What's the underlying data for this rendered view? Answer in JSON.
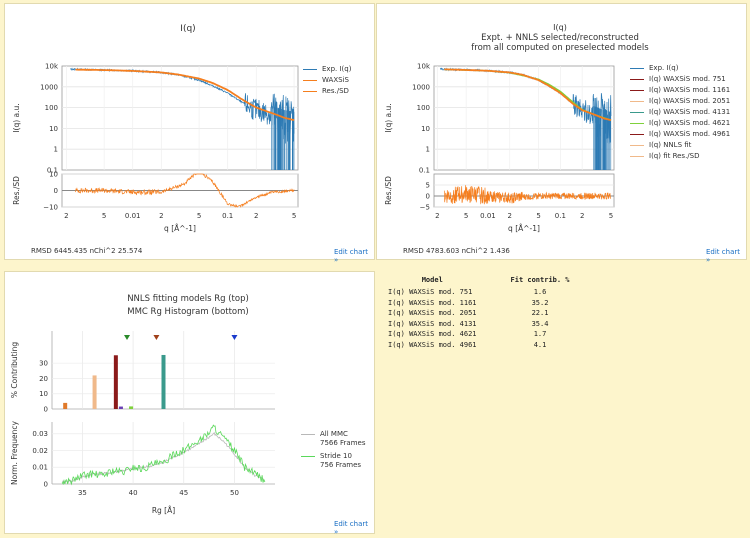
{
  "panels": {
    "p1": {
      "title": "I(q)",
      "rmsd_label": "RMSD 6445.435   nChi^2 25.574",
      "edit": "Edit chart »"
    },
    "p2": {
      "title_lines": [
        "I(q)",
        "Expt. + NNLS selected/reconstructed",
        "from all computed on preselected models"
      ],
      "rmsd_label": "RMSD 4783.603   nChi^2 1.436",
      "edit": "Edit chart »"
    },
    "p3": {
      "title_lines": [
        "NNLS fitting models Rg (top)",
        "MMC Rg Histogram (bottom)"
      ],
      "edit": "Edit chart »"
    }
  },
  "fit_table": {
    "headers": [
      "Model",
      "Fit contrib. %"
    ],
    "rows": [
      [
        "I(q) WAXSiS mod. 751",
        "1.6"
      ],
      [
        "I(q) WAXSiS mod. 1161",
        "35.2"
      ],
      [
        "I(q) WAXSiS mod. 2051",
        "22.1"
      ],
      [
        "I(q) WAXSiS mod. 4131",
        "35.4"
      ],
      [
        "I(q) WAXSiS mod. 4621",
        "1.7"
      ],
      [
        "I(q) WAXSiS mod. 4961",
        "4.1"
      ]
    ]
  },
  "colors": {
    "blue": "#2e7bb4",
    "orange": "#f57e1e",
    "green": "#7fd13b",
    "darkred": "#8b1a1a",
    "teal": "#3a9a8c",
    "peach": "#f0b98a",
    "background": "#fdf5cc"
  },
  "chart_data": [
    {
      "type": "line",
      "title": "I(q)",
      "xlabel": "q [Å^-1]",
      "ylabel": "I(q) a.u.",
      "xscale": "log",
      "yscale": "log",
      "xlim": [
        0.0018,
        0.55
      ],
      "ylim": [
        0.1,
        10000
      ],
      "x_ticks": [
        "2",
        "5",
        "0.01",
        "2",
        "5",
        "0.1",
        "2",
        "5"
      ],
      "y_ticks": [
        "10k",
        "1000",
        "100",
        "10",
        "1",
        "0.1"
      ],
      "residual_ylabel": "Res./SD",
      "residual_ylim": [
        -10,
        10
      ],
      "residual_ticks": [
        "10",
        "0",
        "−10"
      ],
      "legend": [
        "Exp. I(q)",
        "WAXSiS",
        "Res./SD"
      ],
      "series": [
        {
          "name": "Exp. I(q)",
          "color": "#2e7bb4",
          "x": [
            0.0025,
            0.004,
            0.006,
            0.01,
            0.02,
            0.03,
            0.05,
            0.07,
            0.1,
            0.15,
            0.2,
            0.3,
            0.4,
            0.5
          ],
          "y": [
            7000,
            6600,
            6300,
            5900,
            4900,
            3800,
            2100,
            1100,
            500,
            150,
            75,
            45,
            30,
            25
          ]
        },
        {
          "name": "WAXSiS",
          "color": "#f57e1e",
          "x": [
            0.0025,
            0.004,
            0.006,
            0.01,
            0.02,
            0.03,
            0.05,
            0.07,
            0.1,
            0.15,
            0.2,
            0.3,
            0.4,
            0.5
          ],
          "y": [
            6700,
            6500,
            6250,
            5800,
            4900,
            3900,
            2500,
            1500,
            700,
            210,
            100,
            52,
            32,
            25
          ]
        },
        {
          "name": "Res./SD",
          "color": "#f57e1e",
          "x": [
            0.0025,
            0.005,
            0.01,
            0.02,
            0.035,
            0.05,
            0.07,
            0.1,
            0.13,
            0.2,
            0.3,
            0.5
          ],
          "y": [
            0,
            0,
            -1,
            -1,
            4,
            12,
            5,
            -8,
            -10,
            -4,
            -1,
            0
          ]
        }
      ]
    },
    {
      "type": "line",
      "title": "I(q) / Expt. + NNLS selected/reconstructed / from all computed on preselected models",
      "xlabel": "q [Å^-1]",
      "ylabel": "I(q) a.u.",
      "xscale": "log",
      "yscale": "log",
      "xlim": [
        0.0018,
        0.55
      ],
      "ylim": [
        0.1,
        10000
      ],
      "x_ticks": [
        "2",
        "5",
        "0.01",
        "2",
        "5",
        "0.1",
        "2",
        "5"
      ],
      "y_ticks": [
        "10k",
        "1000",
        "100",
        "10",
        "1",
        "0.1"
      ],
      "residual_ylabel": "Res./SD",
      "residual_ylim": [
        -5,
        10
      ],
      "residual_ticks": [
        "5",
        "0",
        "−5"
      ],
      "legend": [
        "Exp. I(q)",
        "I(q) WAXSiS mod. 751",
        "I(q) WAXSiS mod. 1161",
        "I(q) WAXSiS mod. 2051",
        "I(q) WAXSiS mod. 4131",
        "I(q) WAXSiS mod. 4621",
        "I(q) WAXSiS mod. 4961",
        "I(q) NNLS fit",
        "I(q) fit Res./SD"
      ],
      "legend_colors": [
        "#2e7bb4",
        "#8b1a1a",
        "#8b1a1a",
        "#f0b98a",
        "#3a9a8c",
        "#7fd13b",
        "#8b1a1a",
        "#f0b98a",
        "#f0b98a"
      ],
      "series": [
        {
          "name": "Exp. I(q)",
          "color": "#2e7bb4",
          "x": [
            0.0025,
            0.004,
            0.006,
            0.01,
            0.02,
            0.03,
            0.05,
            0.07,
            0.1,
            0.15,
            0.2,
            0.3,
            0.4,
            0.5
          ],
          "y": [
            7000,
            6600,
            6300,
            5900,
            4900,
            3800,
            2100,
            1100,
            500,
            150,
            75,
            45,
            30,
            25
          ]
        },
        {
          "name": "I(q) WAXSiS mod. 4621",
          "color": "#7fd13b",
          "x": [
            0.0025,
            0.01,
            0.02,
            0.03,
            0.05,
            0.07,
            0.1,
            0.15,
            0.2,
            0.3,
            0.5
          ],
          "y": [
            6900,
            5900,
            4700,
            3500,
            2300,
            1300,
            600,
            180,
            80,
            45,
            25
          ]
        },
        {
          "name": "I(q) NNLS fit",
          "color": "#f57e1e",
          "x": [
            0.0025,
            0.004,
            0.006,
            0.01,
            0.02,
            0.03,
            0.05,
            0.07,
            0.1,
            0.15,
            0.2,
            0.3,
            0.4,
            0.5
          ],
          "y": [
            6900,
            6600,
            6300,
            5900,
            4900,
            3800,
            2100,
            1100,
            500,
            150,
            75,
            45,
            30,
            25
          ]
        },
        {
          "name": "I(q) fit Res./SD",
          "color": "#f57e1e",
          "x": [
            0.0025,
            0.005,
            0.01,
            0.02,
            0.05,
            0.1,
            0.2,
            0.5
          ],
          "y": [
            0,
            1,
            0,
            -1,
            0,
            0,
            0,
            0
          ]
        }
      ]
    },
    {
      "type": "bar",
      "title": "NNLS fitting models Rg (top)",
      "ylabel": "% Contributing",
      "xlim": [
        32,
        54
      ],
      "ylim": [
        0,
        38
      ],
      "y_ticks": [
        0,
        10,
        20,
        30
      ],
      "bars": [
        {
          "x": 33.3,
          "value": 4,
          "color": "#e07a2a"
        },
        {
          "x": 36.2,
          "value": 22,
          "color": "#f0b98a"
        },
        {
          "x": 38.3,
          "value": 35.2,
          "color": "#8b1a1a"
        },
        {
          "x": 38.8,
          "value": 1.6,
          "color": "#6a3fb5"
        },
        {
          "x": 39.8,
          "value": 1.7,
          "color": "#7fd13b"
        },
        {
          "x": 43.0,
          "value": 35.4,
          "color": "#3a9a8c"
        }
      ],
      "markers": [
        {
          "x": 39.4,
          "color": "#2a8a2a"
        },
        {
          "x": 42.3,
          "color": "#a0401a"
        },
        {
          "x": 50.0,
          "color": "#1a3acc"
        }
      ]
    },
    {
      "type": "line",
      "title": "MMC Rg Histogram (bottom)",
      "xlabel": "Rg [Å]",
      "ylabel": "Norm. Frequency",
      "xlim": [
        32,
        54
      ],
      "ylim": [
        0,
        0.037
      ],
      "x_ticks": [
        35,
        40,
        45,
        50
      ],
      "y_ticks": [
        0,
        0.01,
        0.02,
        0.03
      ],
      "legend": [
        "All MMC\n7566 Frames",
        "Stride 10\n756 Frames"
      ],
      "series": [
        {
          "name": "All MMC 7566 Frames",
          "color": "#b8b8b8",
          "x": [
            33,
            34,
            35,
            36,
            37,
            38,
            39,
            40,
            41,
            42,
            43,
            44,
            45,
            46,
            47,
            48,
            49,
            50,
            51,
            52,
            53
          ],
          "y": [
            0.001,
            0.002,
            0.004,
            0.006,
            0.006,
            0.007,
            0.008,
            0.009,
            0.01,
            0.011,
            0.013,
            0.016,
            0.019,
            0.022,
            0.026,
            0.03,
            0.025,
            0.018,
            0.01,
            0.005,
            0.002
          ]
        },
        {
          "name": "Stride 10 756 Frames",
          "color": "#5bd85b",
          "x": [
            33,
            34,
            35,
            36,
            37,
            38,
            39,
            40,
            41,
            42,
            43,
            44,
            45,
            46,
            47,
            48,
            49,
            50,
            51,
            52,
            53
          ],
          "y": [
            0.001,
            0.002,
            0.005,
            0.006,
            0.005,
            0.008,
            0.007,
            0.01,
            0.009,
            0.012,
            0.012,
            0.018,
            0.02,
            0.024,
            0.028,
            0.034,
            0.027,
            0.02,
            0.01,
            0.006,
            0.002
          ]
        }
      ]
    }
  ]
}
